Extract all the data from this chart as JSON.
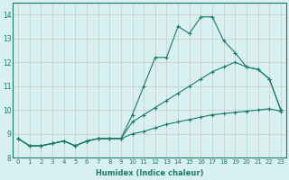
{
  "xlabel": "Humidex (Indice chaleur)",
  "x_values": [
    0,
    1,
    2,
    3,
    4,
    5,
    6,
    7,
    8,
    9,
    10,
    11,
    12,
    13,
    14,
    15,
    16,
    17,
    18,
    19,
    20,
    21,
    22,
    23
  ],
  "line1": [
    8.8,
    8.5,
    8.5,
    8.6,
    8.7,
    8.5,
    8.7,
    8.8,
    8.8,
    8.8,
    9.8,
    11.0,
    12.2,
    12.2,
    13.5,
    13.2,
    13.9,
    13.9,
    12.9,
    12.4,
    11.8,
    11.7,
    11.3,
    10.0
  ],
  "line2": [
    8.8,
    8.5,
    8.5,
    8.6,
    8.7,
    8.5,
    8.7,
    8.8,
    8.8,
    8.8,
    9.5,
    9.8,
    10.1,
    10.4,
    10.7,
    11.0,
    11.3,
    11.6,
    11.8,
    12.0,
    11.8,
    11.7,
    11.3,
    10.0
  ],
  "line3": [
    8.8,
    8.5,
    8.5,
    8.6,
    8.7,
    8.5,
    8.7,
    8.8,
    8.8,
    8.8,
    9.0,
    9.1,
    9.25,
    9.4,
    9.5,
    9.6,
    9.7,
    9.8,
    9.85,
    9.9,
    9.95,
    10.0,
    10.05,
    9.95
  ],
  "line_color": "#1a7a6a",
  "bg_color": "#d8f0f0",
  "grid_color": "#c8c8c8",
  "ylim": [
    8.0,
    14.5
  ],
  "xlim": [
    -0.5,
    23.5
  ],
  "yticks": [
    8,
    9,
    10,
    11,
    12,
    13,
    14
  ],
  "xticks": [
    0,
    1,
    2,
    3,
    4,
    5,
    6,
    7,
    8,
    9,
    10,
    11,
    12,
    13,
    14,
    15,
    16,
    17,
    18,
    19,
    20,
    21,
    22,
    23
  ],
  "tick_fontsize": 5.0,
  "xlabel_fontsize": 6.0
}
